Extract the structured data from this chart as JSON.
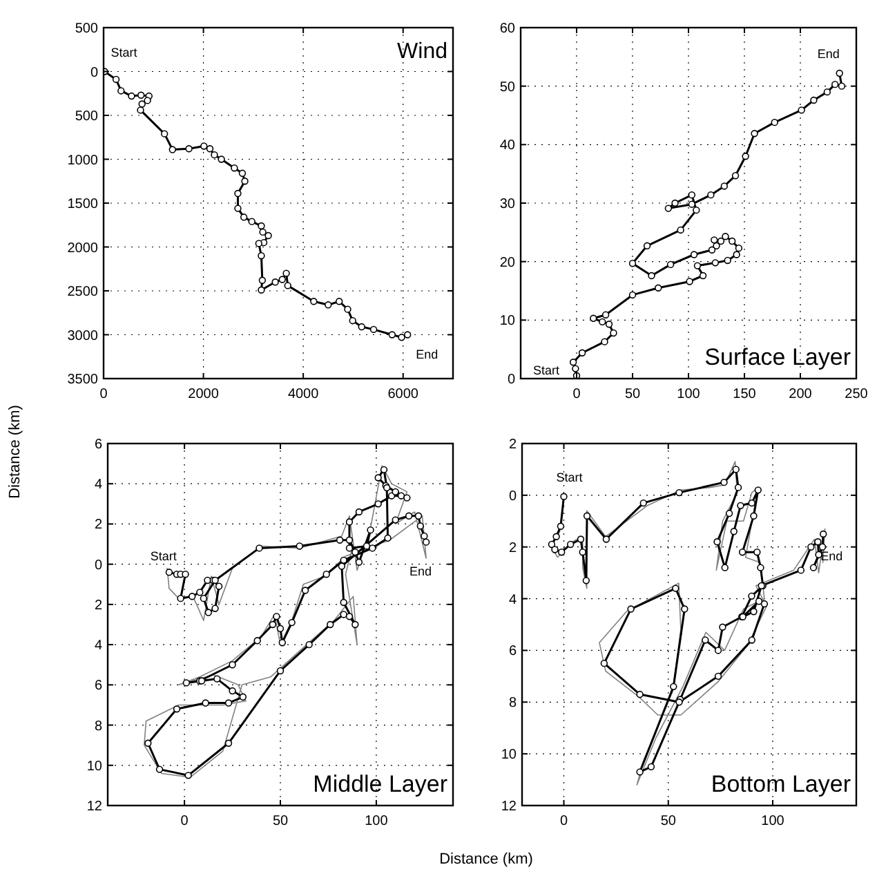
{
  "chart_data": [
    {
      "type": "line",
      "title": "Wind",
      "ylabel": "Distance (km)",
      "xlim": [
        0,
        7000
      ],
      "xticks": [
        0,
        2000,
        4000,
        6000
      ],
      "ylim": [
        3500,
        -500
      ],
      "yticks": [
        {
          "value": -500,
          "label": "500"
        },
        0,
        500,
        1000,
        1500,
        2000,
        2500,
        3000,
        3500
      ],
      "grid": true,
      "annotations": [
        "Start",
        "End"
      ],
      "series": [
        {
          "color": "#000000",
          "marker": "circle",
          "x": [
            20,
            250,
            350,
            560,
            750,
            910,
            880,
            770,
            740,
            1220,
            1380,
            1710,
            2010,
            2130,
            2220,
            2360,
            2620,
            2780,
            2830,
            2690,
            2690,
            2810,
            2970,
            3160,
            3190,
            3300,
            3210,
            3110,
            3160,
            3180,
            3160,
            3440,
            3580,
            3660,
            3690,
            4210,
            4500,
            4720,
            4890,
            4990,
            5170,
            5410,
            5780,
            5970,
            6090
          ],
          "values": [
            0,
            90,
            220,
            280,
            270,
            280,
            330,
            370,
            440,
            710,
            890,
            880,
            850,
            880,
            950,
            1000,
            1100,
            1160,
            1250,
            1390,
            1560,
            1660,
            1710,
            1760,
            1830,
            1870,
            1950,
            1960,
            2100,
            2380,
            2490,
            2400,
            2370,
            2300,
            2440,
            2620,
            2660,
            2620,
            2710,
            2840,
            2910,
            2940,
            3000,
            3030,
            3000
          ]
        }
      ]
    },
    {
      "type": "line",
      "title": "Surface Layer",
      "xlim": [
        -50,
        250
      ],
      "xticks": [
        0,
        50,
        100,
        150,
        200,
        250
      ],
      "ylim": [
        0,
        60
      ],
      "yticks": [
        0,
        10,
        20,
        30,
        40,
        50,
        60
      ],
      "grid": true,
      "annotations": [
        "Start",
        "End"
      ],
      "series": [
        {
          "color": "#000000",
          "marker": "circle",
          "x": [
            0,
            -1,
            -3,
            5,
            25,
            33,
            29,
            23,
            15,
            26,
            50,
            73,
            101,
            113,
            108,
            124,
            135,
            143,
            145,
            139,
            133,
            129,
            123,
            125,
            121,
            105,
            84,
            67,
            50,
            63,
            93,
            107,
            103,
            88,
            82,
            103,
            120,
            132,
            142,
            151,
            159,
            177,
            201,
            212,
            224,
            231,
            237,
            235
          ],
          "values": [
            0.5,
            1.7,
            2.8,
            4.4,
            6.3,
            7.8,
            9.3,
            9.7,
            10.3,
            10.9,
            14.3,
            15.5,
            16.6,
            17.6,
            19.3,
            19.8,
            20.2,
            21.2,
            22.3,
            23.5,
            24.3,
            23.5,
            23.7,
            22.7,
            22,
            21.2,
            19.5,
            17.6,
            19.7,
            22.7,
            25.4,
            28.8,
            31.4,
            30,
            29.1,
            29.8,
            31.4,
            32.9,
            34.7,
            38,
            41.9,
            43.8,
            45.9,
            47.6,
            49,
            50.3,
            50,
            52.2
          ]
        }
      ]
    },
    {
      "type": "line",
      "title": "Middle Layer",
      "xlabel": "Distance (km)",
      "xlim": [
        -40,
        140
      ],
      "xticks": [
        0,
        50,
        100
      ],
      "ylim": [
        12,
        -6
      ],
      "yticks": [
        {
          "value": -6,
          "label": "6"
        },
        {
          "value": -4,
          "label": "4"
        },
        {
          "value": -2,
          "label": "2"
        },
        0,
        2,
        4,
        6,
        8,
        10,
        12
      ],
      "grid": true,
      "annotations": [
        "Start",
        "End"
      ],
      "series": [
        {
          "color": "#808080",
          "marker": "none",
          "x": [
            -9,
            -8,
            -2,
            4,
            10,
            14,
            18,
            25,
            40,
            60,
            82,
            86,
            90,
            97,
            103,
            108,
            116,
            110,
            120,
            126,
            124,
            107,
            84,
            73,
            62,
            56,
            50,
            47,
            40,
            25,
            8,
            -3,
            15,
            28,
            32,
            20,
            -3,
            -20,
            -21,
            -12,
            3,
            20,
            30,
            45,
            66,
            78,
            88,
            90,
            84,
            88
          ],
          "values": [
            0.2,
            1.2,
            1.8,
            1.5,
            2.8,
            0.6,
            2,
            0.2,
            -0.9,
            -0.8,
            -1.4,
            -2.4,
            0.3,
            -1.8,
            -4.9,
            -4,
            -3.6,
            -2,
            -2.6,
            -0.3,
            -2.4,
            -1.2,
            -0.4,
            0.6,
            1,
            2.8,
            4,
            2.5,
            3.6,
            4.8,
            5.6,
            6,
            5.5,
            6,
            6.8,
            7,
            7,
            7.8,
            9,
            10.4,
            10.6,
            9.3,
            6,
            5.6,
            3.8,
            2.8,
            1.6,
            4,
            0.5,
            -1
          ]
        },
        {
          "color": "#000000",
          "marker": "circle",
          "x": [
            -8,
            -4,
            -2,
            0.5,
            -2,
            4,
            8,
            12,
            15,
            18,
            16,
            12.5,
            10,
            16,
            39,
            60,
            81,
            86,
            89,
            91,
            97,
            95,
            86,
            86,
            91,
            101,
            108,
            113,
            116,
            110,
            105,
            101,
            104,
            105.5,
            106,
            98,
            83,
            74,
            63,
            56,
            51,
            50,
            48,
            46,
            38,
            25,
            8,
            1,
            9,
            17,
            25,
            30.5,
            23,
            11,
            -4,
            -19,
            -13,
            2,
            23,
            50,
            65,
            76,
            83,
            86,
            89,
            83,
            82,
            110,
            117,
            122,
            123,
            125,
            126
          ],
          "values": [
            0.4,
            0.5,
            0.5,
            0.5,
            1.7,
            1.6,
            1.4,
            0.8,
            0.8,
            1.1,
            2.2,
            2.4,
            1.7,
            0.8,
            -0.8,
            -0.9,
            -1.2,
            -1.2,
            -0.6,
            -0.1,
            -1.7,
            -0.9,
            -0.8,
            -2.1,
            -2.6,
            -3,
            -3.4,
            -3.4,
            -3.3,
            -3.6,
            -3.9,
            -4.3,
            -4.7,
            -3.8,
            -1.3,
            -0.8,
            -0.2,
            0.5,
            1.3,
            2.9,
            3.9,
            3.2,
            2.6,
            3,
            3.8,
            5,
            5.8,
            5.9,
            5.8,
            5.7,
            6.3,
            6.6,
            6.9,
            6.9,
            7.2,
            8.9,
            10.2,
            10.5,
            8.9,
            5.3,
            4,
            3,
            2.5,
            2.6,
            3,
            1.9,
            0.1,
            -2.2,
            -2.4,
            -2.4,
            -1.9,
            -1.4,
            -1.1
          ]
        }
      ]
    },
    {
      "type": "line",
      "title": "Bottom Layer",
      "xlim": [
        -20,
        140
      ],
      "xticks": [
        0,
        50,
        100
      ],
      "ylim": [
        12,
        -2
      ],
      "yticks": [
        {
          "value": -2,
          "label": "2"
        },
        0,
        2,
        4,
        6,
        8,
        10,
        12
      ],
      "grid": true,
      "annotations": [
        "Start",
        "End"
      ],
      "series": [
        {
          "color": "#808080",
          "marker": "none",
          "x": [
            0,
            -2,
            -6,
            -3,
            4,
            9,
            9,
            11,
            11,
            20,
            40,
            56,
            70,
            77,
            82,
            83,
            76,
            73,
            78,
            86,
            90,
            93,
            87,
            94,
            96,
            86,
            77,
            68,
            57,
            44,
            35,
            38,
            52,
            56,
            55,
            30,
            17,
            20,
            36,
            45,
            56,
            74,
            88,
            97,
            92,
            110,
            120,
            122,
            125,
            124
          ],
          "values": [
            0.1,
            1.4,
            2,
            2.4,
            1.8,
            1.6,
            2.8,
            3.6,
            0.6,
            1.6,
            0.4,
            -0.2,
            -0.3,
            -0.4,
            -1.3,
            -0.1,
            1,
            2.9,
            1,
            1,
            -0.1,
            -0.3,
            2.4,
            2.6,
            4,
            4.4,
            6,
            5.3,
            7.4,
            9.4,
            11.2,
            10.3,
            7.6,
            5.2,
            3.4,
            4.5,
            5.7,
            6.8,
            7.8,
            8.5,
            8.5,
            7.2,
            5.8,
            4.3,
            3.5,
            2.9,
            1.7,
            3,
            1.3,
            2.6
          ]
        },
        {
          "color": "#000000",
          "marker": "circle",
          "x": [
            0,
            -1.5,
            -3.6,
            -5.8,
            -4.3,
            -1.1,
            3.2,
            8.1,
            9,
            10.7,
            11.1,
            20.3,
            38.1,
            55.2,
            76.7,
            82.4,
            83.5,
            79.2,
            73.4,
            77.1,
            81.4,
            84.6,
            90,
            93,
            90.9,
            85.5,
            92.5,
            94.2,
            95.3,
            89.9,
            85.2,
            76,
            73.9,
            67.7,
            55.7,
            41.8,
            36.4,
            52.5,
            57.8,
            53.5,
            32.1,
            19.3,
            36.4,
            55.2,
            73.9,
            90,
            96,
            93.4,
            85.7,
            90.9,
            94.6,
            113.5,
            118.3,
            121.6,
            122,
            119.5,
            123.8,
            124.2
          ],
          "values": [
            0.05,
            1.2,
            1.6,
            1.9,
            2.1,
            2.2,
            1.9,
            1.7,
            2.2,
            3.3,
            0.8,
            1.7,
            0.3,
            -0.1,
            -0.5,
            -1,
            -0.3,
            0.7,
            1.8,
            2.8,
            1.4,
            0.4,
            0.3,
            -0.2,
            0.8,
            2.2,
            2.2,
            2.8,
            3.5,
            3.9,
            4.7,
            5.1,
            6,
            5.6,
            7.9,
            10.5,
            10.7,
            7.4,
            4.4,
            3.6,
            4.4,
            6.5,
            7.7,
            8,
            7,
            5.6,
            4.2,
            4.1,
            4.7,
            4.5,
            3.5,
            2.9,
            2,
            1.8,
            2.3,
            2.8,
            2,
            1.5
          ]
        }
      ]
    }
  ]
}
